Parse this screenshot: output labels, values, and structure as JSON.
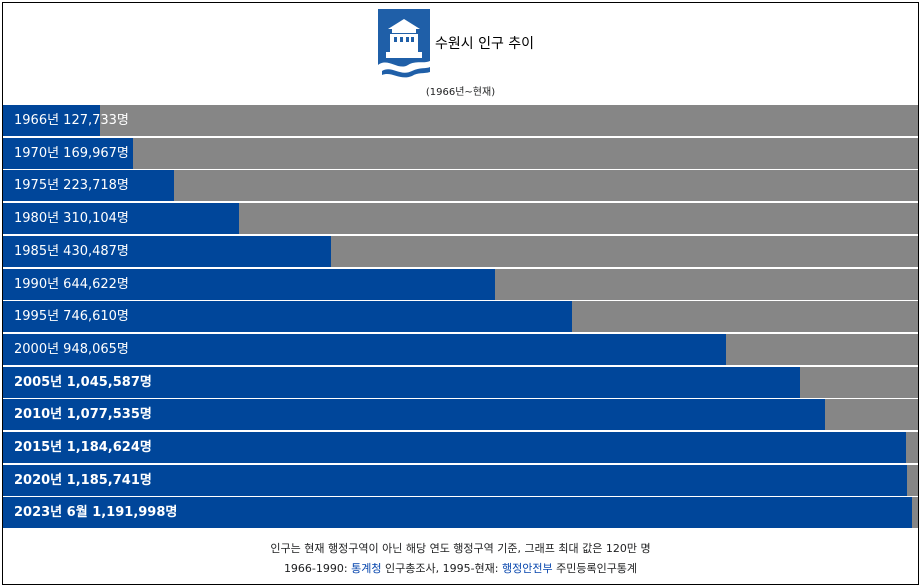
{
  "chart_data": {
    "type": "bar",
    "orientation": "horizontal",
    "title": "수원시 인구 추이",
    "subtitle": "(1966년~현재)",
    "xlim": [
      0,
      1200000
    ],
    "bar_color": "#00469a",
    "track_color": "#868686",
    "categories": [
      "1966년",
      "1970년",
      "1975년",
      "1980년",
      "1985년",
      "1990년",
      "1995년",
      "2000년",
      "2005년",
      "2010년",
      "2015년",
      "2020년",
      "2023년 6월"
    ],
    "values": [
      127733,
      169967,
      223718,
      310104,
      430487,
      644622,
      746610,
      948065,
      1045587,
      1077535,
      1184624,
      1185741,
      1191998
    ],
    "labels": [
      "1966년 127,733명",
      "1970년 169,967명",
      "1975년 223,718명",
      "1980년 310,104명",
      "1985년 430,487명",
      "1990년 644,622명",
      "1995년 746,610명",
      "2000년 948,065명",
      "2005년 1,045,587명",
      "2010년 1,077,535명",
      "2015년 1,184,624명",
      "2020년 1,185,741명",
      "2023년 6월 1,191,998명"
    ],
    "bold_from_index": 8
  },
  "footer": {
    "note": "인구는 현재 행정구역이 아닌 해당 연도 행정구역 기준, 그래프 최대 값은 120만 명",
    "source_prefix": "1966-1990: ",
    "source_link1": "통계청",
    "source_middle": " 인구총조사, 1995-현재: ",
    "source_link2": "행정안전부",
    "source_suffix": " 주민등록인구통계"
  },
  "colors": {
    "emblem_blue": "#1f5fa8",
    "link": "#0645ad"
  },
  "icons": {
    "emblem": "suwon-city-emblem-icon"
  }
}
